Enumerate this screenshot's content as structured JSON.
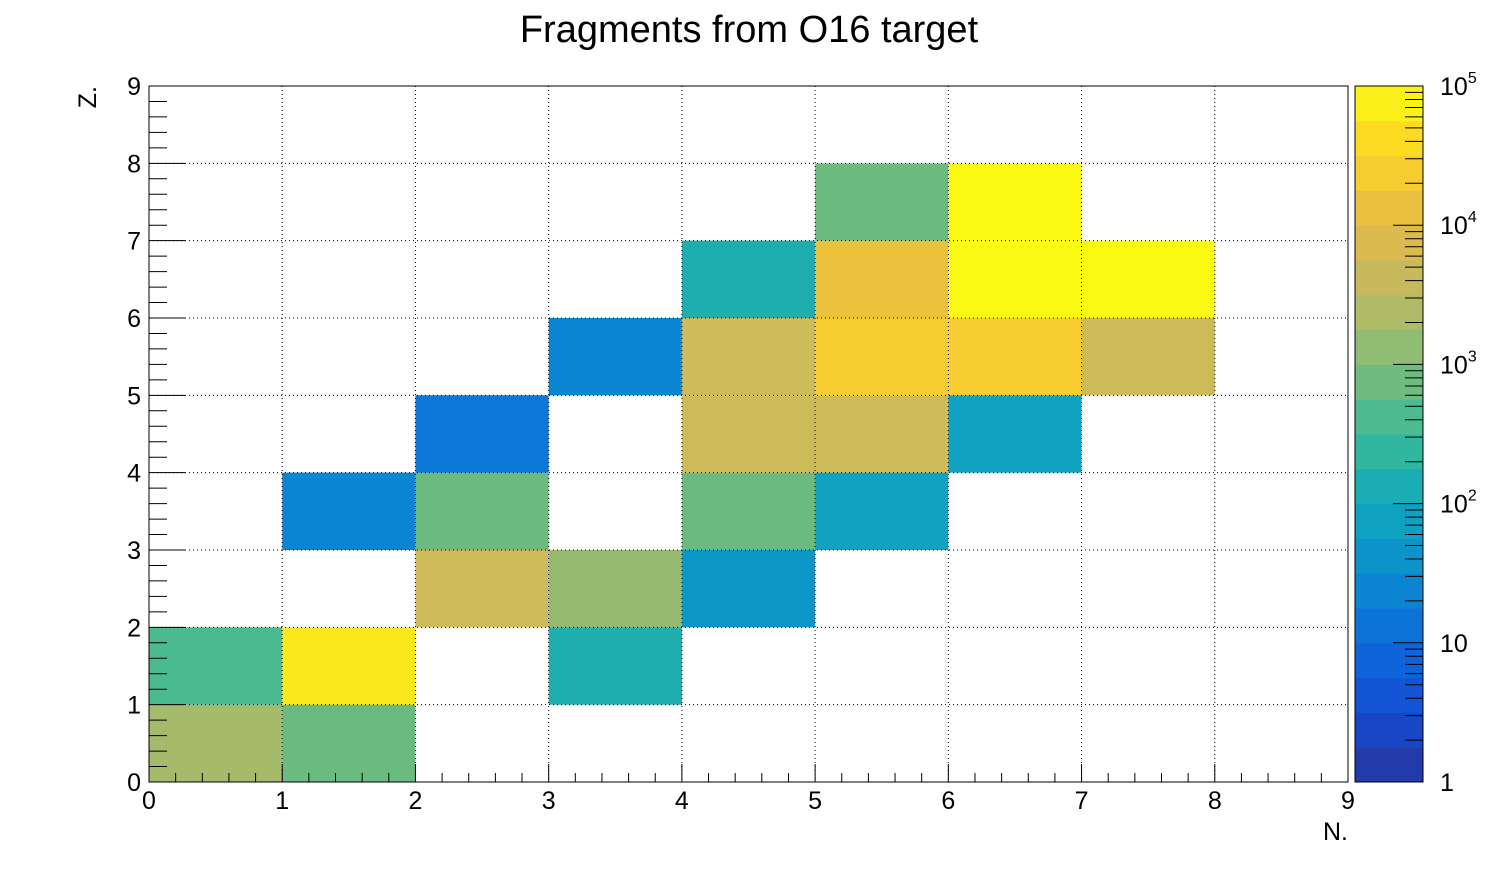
{
  "chart_data": {
    "type": "heatmap",
    "title": "Fragments from O16 target",
    "xlabel": "N.",
    "ylabel": "Z.",
    "xlim": [
      0,
      9
    ],
    "ylim": [
      0,
      9
    ],
    "x_ticks": [
      "0",
      "1",
      "2",
      "3",
      "4",
      "5",
      "6",
      "7",
      "8",
      "9"
    ],
    "y_ticks": [
      "0",
      "1",
      "2",
      "3",
      "4",
      "5",
      "6",
      "7",
      "8",
      "9"
    ],
    "grid": true,
    "color_scale": "log",
    "zlim": [
      1,
      100000
    ],
    "colorbar_ticks": [
      {
        "value": 1,
        "base": "1",
        "exp": ""
      },
      {
        "value": 10,
        "base": "10",
        "exp": ""
      },
      {
        "value": 100,
        "base": "10",
        "exp": "2"
      },
      {
        "value": 1000,
        "base": "10",
        "exp": "3"
      },
      {
        "value": 10000,
        "base": "10",
        "exp": "4"
      },
      {
        "value": 100000,
        "base": "10",
        "exp": "5"
      }
    ],
    "cells": [
      {
        "n": 0,
        "z": 0,
        "value": 2000
      },
      {
        "n": 1,
        "z": 0,
        "value": 700
      },
      {
        "n": 0,
        "z": 1,
        "value": 400
      },
      {
        "n": 1,
        "z": 1,
        "value": 60000
      },
      {
        "n": 3,
        "z": 1,
        "value": 150
      },
      {
        "n": 2,
        "z": 2,
        "value": 5000
      },
      {
        "n": 3,
        "z": 2,
        "value": 1500
      },
      {
        "n": 4,
        "z": 2,
        "value": 50
      },
      {
        "n": 1,
        "z": 3,
        "value": 25
      },
      {
        "n": 2,
        "z": 3,
        "value": 700
      },
      {
        "n": 4,
        "z": 3,
        "value": 700
      },
      {
        "n": 5,
        "z": 3,
        "value": 80
      },
      {
        "n": 2,
        "z": 4,
        "value": 15
      },
      {
        "n": 4,
        "z": 4,
        "value": 5000
      },
      {
        "n": 5,
        "z": 4,
        "value": 5000
      },
      {
        "n": 6,
        "z": 4,
        "value": 80
      },
      {
        "n": 3,
        "z": 5,
        "value": 25
      },
      {
        "n": 4,
        "z": 5,
        "value": 5000
      },
      {
        "n": 5,
        "z": 5,
        "value": 25000
      },
      {
        "n": 6,
        "z": 5,
        "value": 25000
      },
      {
        "n": 7,
        "z": 5,
        "value": 5000
      },
      {
        "n": 4,
        "z": 6,
        "value": 150
      },
      {
        "n": 5,
        "z": 6,
        "value": 15000
      },
      {
        "n": 6,
        "z": 6,
        "value": 100000
      },
      {
        "n": 7,
        "z": 6,
        "value": 100000
      },
      {
        "n": 5,
        "z": 7,
        "value": 700
      },
      {
        "n": 6,
        "z": 7,
        "value": 100000
      }
    ]
  }
}
